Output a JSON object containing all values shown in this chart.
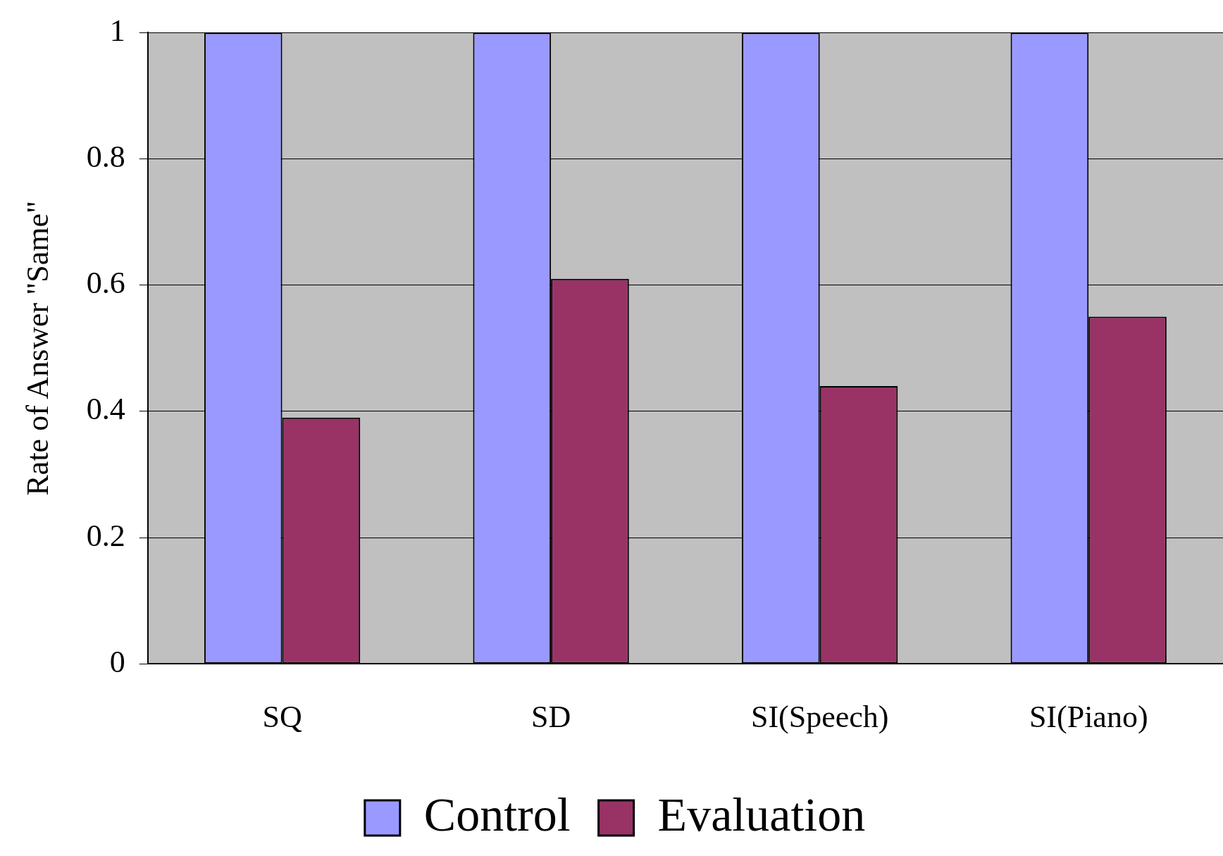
{
  "chart_data": {
    "type": "bar",
    "ylabel": "Rate of Answer \"Same\"",
    "categories": [
      "SQ",
      "SD",
      "SI(Speech)",
      "SI(Piano)"
    ],
    "series": [
      {
        "name": "Control",
        "color": "#9999ff",
        "values": [
          1,
          1,
          1,
          1
        ]
      },
      {
        "name": "Evaluation",
        "color": "#993366",
        "values": [
          0.39,
          0.61,
          0.44,
          0.55
        ]
      }
    ],
    "ylim": [
      0,
      1
    ],
    "yticks": [
      0,
      0.2,
      0.4,
      0.6,
      0.8,
      1
    ],
    "grid": "y",
    "legend": "bottom"
  }
}
